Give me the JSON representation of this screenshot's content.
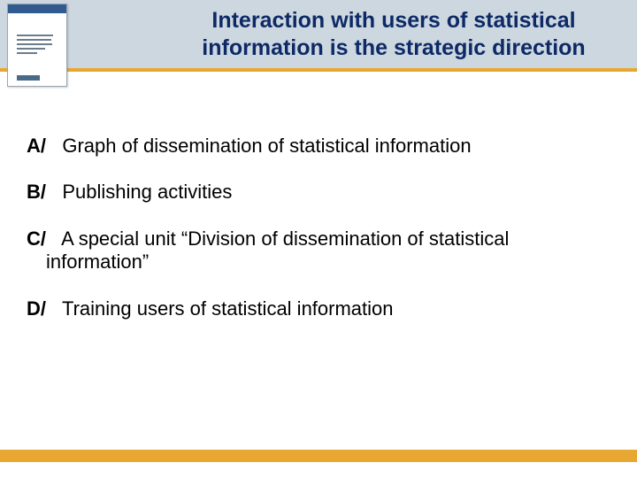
{
  "colors": {
    "header_band": "#cdd7e0",
    "accent": "#e8a730",
    "title_text": "#0d2a66",
    "body_text": "#000000",
    "background": "#ffffff"
  },
  "title": "Interaction with users of statistical information is the strategic direction",
  "items": [
    {
      "label": "A/",
      "text": "Graph of dissemination of statistical information"
    },
    {
      "label": "B/",
      "text": "Publishing activities"
    },
    {
      "label": "C/",
      "text": "A special unit “Division of dissemination of  statistical information”"
    },
    {
      "label": "D/",
      "text": "Training users of statistical information"
    }
  ]
}
